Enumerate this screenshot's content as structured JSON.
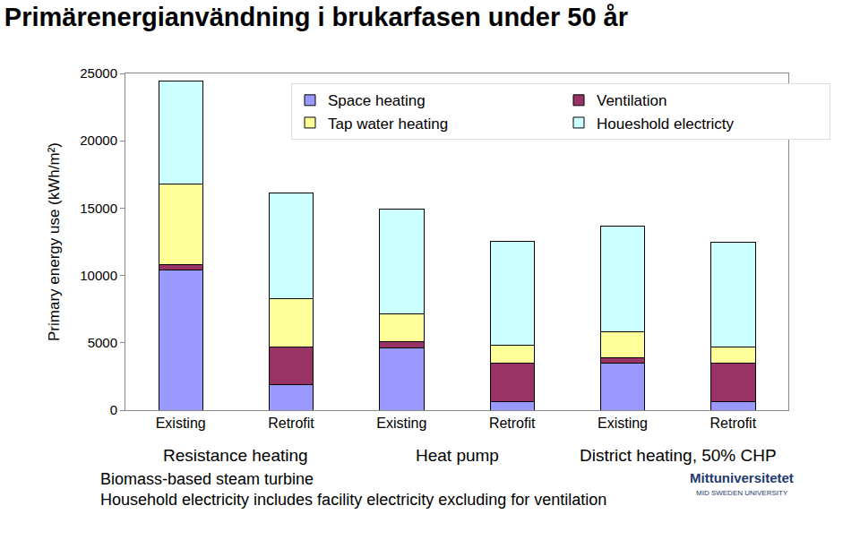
{
  "chart_data": {
    "type": "bar",
    "stacked": true,
    "title": "Primärenergianvändning i brukarfasen under 50 år",
    "y_label": "Primary energy use (kWh/m²)",
    "categories": [
      "Existing",
      "Retrofit",
      "Existing",
      "Retrofit",
      "Existing",
      "Retrofit"
    ],
    "category_groups": [
      "Resistance heating",
      "Resistance heating",
      "Heat pump",
      "Heat pump",
      "District heating, 50% CHP",
      "District heating, 50% CHP"
    ],
    "series": [
      {
        "name": "Space heating",
        "color": "#9999ff",
        "values": [
          10400,
          1900,
          4600,
          600,
          3500,
          600
        ]
      },
      {
        "name": "Ventilation",
        "color": "#993366",
        "values": [
          400,
          2800,
          500,
          2900,
          400,
          2900
        ]
      },
      {
        "name": "Tap water heating",
        "color": "#ffff99",
        "values": [
          6000,
          3600,
          2050,
          1300,
          1900,
          1200
        ]
      },
      {
        "name": "Houeshold electricty",
        "color": "#ccffff",
        "values": [
          7650,
          7800,
          7800,
          7750,
          7850,
          7750
        ]
      }
    ],
    "ylim": [
      0,
      25000
    ],
    "yticks": [
      0,
      5000,
      10000,
      15000,
      20000,
      25000
    ],
    "grid": false,
    "legend": "top right",
    "notes": [
      "Biomass-based steam turbine",
      "Household electricity includes facility electricity excluding for ventilation"
    ],
    "logo": [
      "Mittuniversitetet",
      "MID SWEDEN UNIVERSITY"
    ]
  }
}
